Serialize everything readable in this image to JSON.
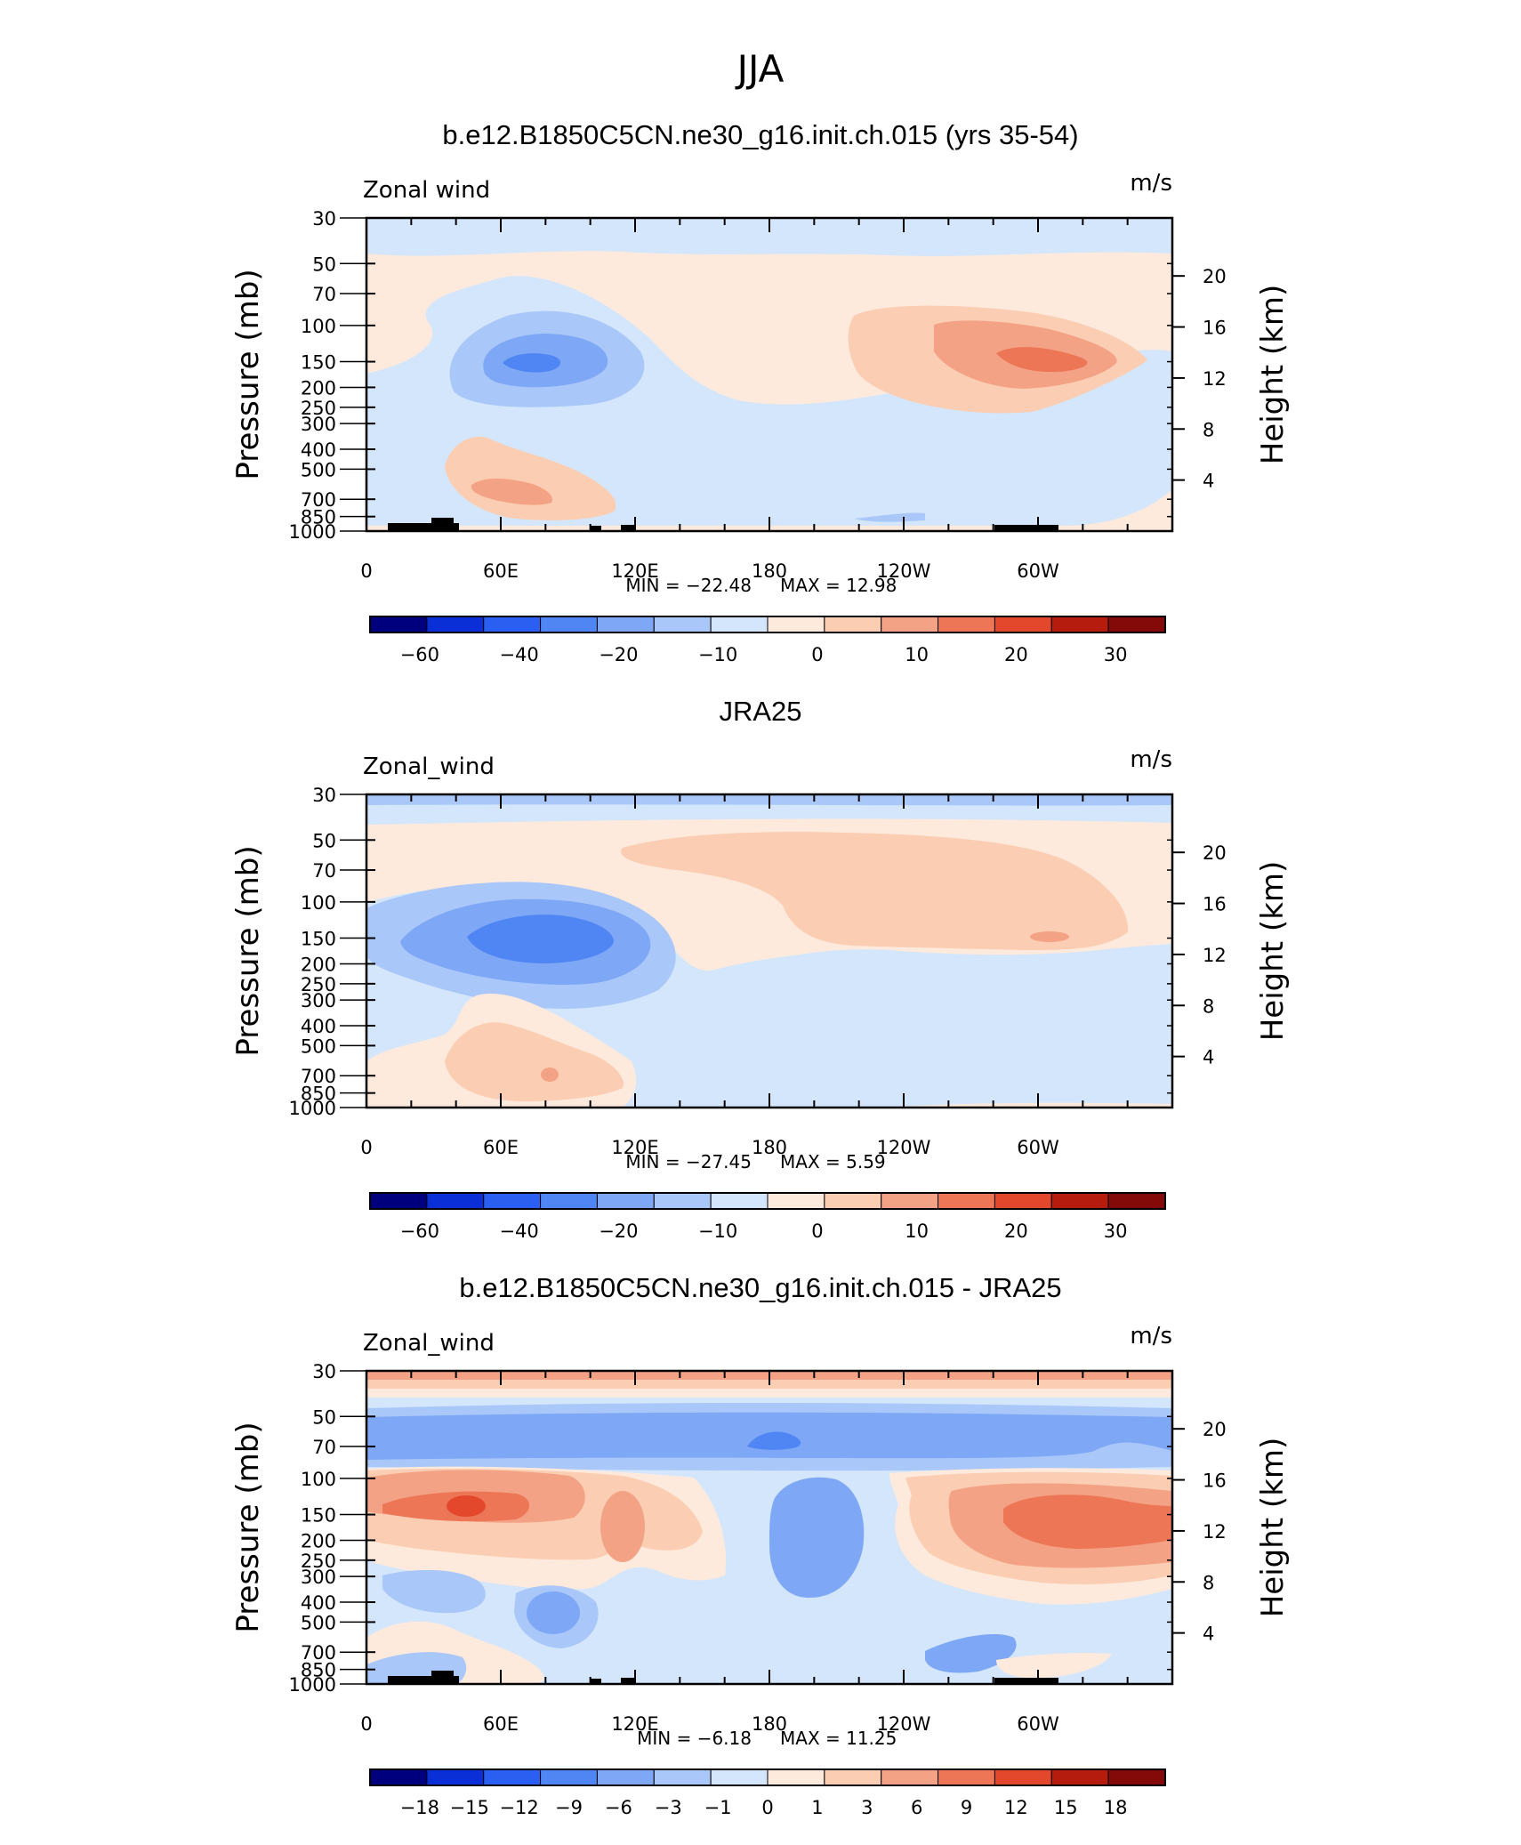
{
  "figure": {
    "season": "JJA",
    "colors": [
      "#00007f",
      "#0b2fd6",
      "#2b5ff1",
      "#4f86f3",
      "#7ea7f6",
      "#a9c7f8",
      "#d3e6fb",
      "#fdeadc",
      "#fbcdb2",
      "#f4a285",
      "#ec7656",
      "#e3482d",
      "#b51c0e",
      "#840a09"
    ]
  },
  "chart_data": [
    {
      "type": "heatmap",
      "title": "b.e12.B1850C5CN.ne30_g16.init.ch.015 (yrs 35-54)",
      "variable": "Zonal wind",
      "units": "m/s",
      "ylabel": "Pressure  (mb)",
      "ylabel_right": "Height  (km)",
      "x_ticks": [
        "0",
        "60E",
        "120E",
        "180",
        "120W",
        "60W"
      ],
      "y_ticks": [
        "30",
        "50",
        "70",
        "100",
        "150",
        "200",
        "250",
        "300",
        "400",
        "500",
        "700",
        "850",
        "1000"
      ],
      "y_right_ticks": [
        "20",
        "16",
        "12",
        "8",
        "4"
      ],
      "min_label": "MIN =  −22.48",
      "max_label": "MAX =   12.98",
      "colorbar_labels": [
        "−60",
        "−40",
        "−20",
        "−10",
        "0",
        "10",
        "20",
        "30"
      ],
      "min": -22.48,
      "max": 12.98,
      "features": [
        {
          "label": "jet core",
          "lon": 75,
          "p": 150,
          "value": -22.48
        },
        {
          "label": "jet core",
          "lon": 300,
          "p": 150,
          "value": 12.98
        }
      ]
    },
    {
      "type": "heatmap",
      "title": "JRA25",
      "variable": "Zonal_wind",
      "units": "m/s",
      "ylabel": "Pressure  (mb)",
      "ylabel_right": "Height  (km)",
      "x_ticks": [
        "0",
        "60E",
        "120E",
        "180",
        "120W",
        "60W"
      ],
      "y_ticks": [
        "30",
        "50",
        "70",
        "100",
        "150",
        "200",
        "250",
        "300",
        "400",
        "500",
        "700",
        "850",
        "1000"
      ],
      "y_right_ticks": [
        "20",
        "16",
        "12",
        "8",
        "4"
      ],
      "min_label": "MIN =  −27.45",
      "max_label": "MAX =     5.59",
      "colorbar_labels": [
        "−60",
        "−40",
        "−20",
        "−10",
        "0",
        "10",
        "20",
        "30"
      ],
      "min": -27.45,
      "max": 5.59
    },
    {
      "type": "heatmap",
      "title": "b.e12.B1850C5CN.ne30_g16.init.ch.015 - JRA25",
      "variable": "Zonal_wind",
      "units": "m/s",
      "ylabel": "Pressure  (mb)",
      "ylabel_right": "Height  (km)",
      "x_ticks": [
        "0",
        "60E",
        "120E",
        "180",
        "120W",
        "60W"
      ],
      "y_ticks": [
        "30",
        "50",
        "70",
        "100",
        "150",
        "200",
        "250",
        "300",
        "400",
        "500",
        "700",
        "850",
        "1000"
      ],
      "y_right_ticks": [
        "20",
        "16",
        "12",
        "8",
        "4"
      ],
      "min_label": "MIN =    −6.18",
      "max_label": "MAX =   11.25",
      "colorbar_labels": [
        "−18",
        "−15",
        "−12",
        "−9",
        "−6",
        "−3",
        "−1",
        "0",
        "1",
        "3",
        "6",
        "9",
        "12",
        "15",
        "18"
      ],
      "min": -6.18,
      "max": 11.25
    }
  ]
}
